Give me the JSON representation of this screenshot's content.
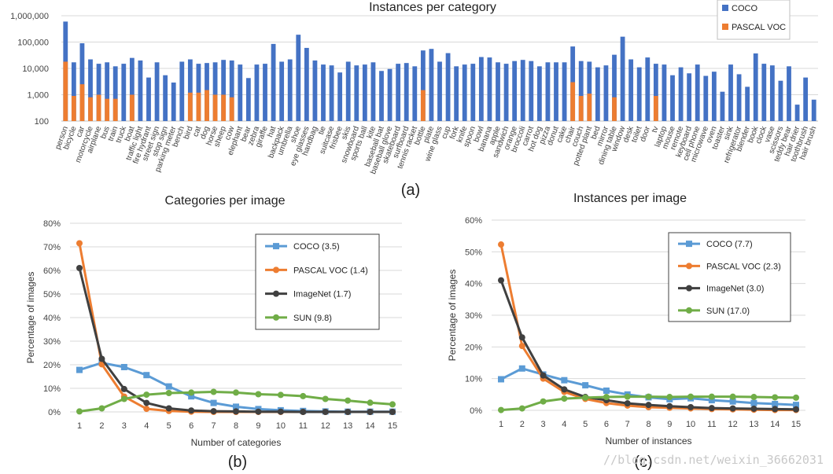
{
  "colors": {
    "coco": "#4472C4",
    "pascal": "#ED7D31",
    "coco_line": "#5B9BD5",
    "imagenet": "#404040",
    "sun": "#70AD47",
    "grid": "#D9D9D9"
  },
  "watermark": "//blog.csdn.net/weixin_36662031",
  "chart_data": [
    {
      "type": "bar",
      "id": "a",
      "panel_label": "(a)",
      "title": "Instances per category",
      "xlabel": "",
      "ylabel": "",
      "yscale": "log",
      "ylim": [
        100,
        1000000
      ],
      "yticks": [
        100,
        1000,
        10000,
        100000,
        1000000
      ],
      "ytick_labels": [
        "100",
        "1,000",
        "10,000",
        "100,000",
        "1,000,000"
      ],
      "grid": true,
      "legend": {
        "placement": "top-right",
        "entries": [
          "COCO",
          "PASCAL VOC"
        ]
      },
      "categories": [
        "person",
        "bicycle",
        "car",
        "motorcycle",
        "airplane",
        "bus",
        "train",
        "truck",
        "boat",
        "traffic light",
        "fire hydrant",
        "street sign",
        "stop sign",
        "parking meter",
        "bench",
        "bird",
        "cat",
        "dog",
        "horse",
        "sheep",
        "cow",
        "elephant",
        "bear",
        "zebra",
        "giraffe",
        "hat",
        "backpack",
        "umbrella",
        "shoe",
        "eye glasses",
        "handbag",
        "tie",
        "suitcase",
        "frisbee",
        "skis",
        "snowboard",
        "sports ball",
        "kite",
        "baseball bat",
        "baseball glove",
        "skateboard",
        "surfboard",
        "tennis racket",
        "bottle",
        "plate",
        "wine glass",
        "cup",
        "fork",
        "knife",
        "spoon",
        "bowl",
        "banana",
        "apple",
        "sandwich",
        "orange",
        "broccoli",
        "carrot",
        "hot dog",
        "pizza",
        "donut",
        "cake",
        "chair",
        "couch",
        "potted plant",
        "bed",
        "mirror",
        "dining table",
        "window",
        "desk",
        "toilet",
        "door",
        "tv",
        "laptop",
        "mouse",
        "remote",
        "keyboard",
        "cell phone",
        "microwave",
        "oven",
        "toaster",
        "sink",
        "refrigerator",
        "blender",
        "book",
        "clock",
        "vase",
        "scissors",
        "teddy bear",
        "hair drier",
        "toothbrush",
        "hair brush"
      ],
      "series": [
        {
          "name": "COCO",
          "values": [
            600000,
            17000,
            90000,
            22000,
            15000,
            17000,
            12000,
            15000,
            25000,
            20000,
            4500,
            17000,
            5500,
            2900,
            18000,
            22000,
            15000,
            16000,
            17000,
            21000,
            20000,
            14000,
            4300,
            14000,
            15000,
            85000,
            18000,
            22000,
            190000,
            60000,
            20000,
            14000,
            13000,
            7000,
            18000,
            13000,
            14000,
            17000,
            8000,
            9500,
            15000,
            16000,
            12000,
            48000,
            55000,
            18000,
            38000,
            12000,
            14000,
            15000,
            27000,
            26000,
            17000,
            15000,
            19000,
            21000,
            19000,
            12000,
            17000,
            17000,
            17000,
            68000,
            19000,
            18000,
            11000,
            13000,
            33000,
            160000,
            22000,
            11000,
            26000,
            15000,
            14000,
            5500,
            11000,
            6500,
            14000,
            5200,
            7500,
            1300,
            14000,
            6000,
            2000,
            37000,
            15000,
            13000,
            3400,
            12000,
            420,
            4500,
            650
          ]
        },
        {
          "name": "PASCAL VOC",
          "values": [
            18000,
            900,
            2500,
            800,
            1000,
            700,
            700,
            null,
            1000,
            null,
            null,
            null,
            null,
            null,
            null,
            1200,
            1200,
            1500,
            1000,
            1000,
            800,
            null,
            null,
            null,
            null,
            null,
            null,
            null,
            null,
            null,
            null,
            null,
            null,
            null,
            null,
            null,
            null,
            null,
            null,
            null,
            null,
            null,
            null,
            1500,
            null,
            null,
            null,
            null,
            null,
            null,
            null,
            null,
            null,
            null,
            null,
            null,
            null,
            null,
            null,
            null,
            null,
            3000,
            900,
            1100,
            null,
            null,
            800,
            null,
            null,
            null,
            null,
            900,
            null,
            null,
            null,
            null,
            null,
            null,
            null,
            null,
            null,
            null,
            null,
            null,
            null,
            null,
            null,
            null,
            null,
            null,
            null
          ]
        }
      ]
    },
    {
      "type": "line",
      "id": "b",
      "panel_label": "(b)",
      "title": "Categories per image",
      "xlabel": "Number of categories",
      "ylabel": "Percentage of images",
      "x": [
        1,
        2,
        3,
        4,
        5,
        6,
        7,
        8,
        9,
        10,
        11,
        12,
        13,
        14,
        15
      ],
      "ylim": [
        0,
        80
      ],
      "yticks": [
        0,
        10,
        20,
        30,
        40,
        50,
        60,
        70,
        80
      ],
      "ytick_suffix": "%",
      "grid": true,
      "legend": {
        "placement": "top-right"
      },
      "series": [
        {
          "name": "COCO (3.5)",
          "color_key": "coco_line",
          "marker": "square",
          "values": [
            17.8,
            20.8,
            19.0,
            15.6,
            10.8,
            6.6,
            3.8,
            2.2,
            1.2,
            0.7,
            0.4,
            0.2,
            0.1,
            0.1,
            0.1
          ]
        },
        {
          "name": "PASCAL VOC (1.4)",
          "color_key": "pascal",
          "marker": "circle",
          "values": [
            71.5,
            20.2,
            6.5,
            1.3,
            0.4,
            0.1,
            0,
            0,
            0,
            0,
            0,
            0,
            0,
            0,
            0
          ]
        },
        {
          "name": "ImageNet (1.7)",
          "color_key": "imagenet",
          "marker": "circle",
          "values": [
            61.0,
            22.5,
            9.7,
            3.8,
            1.5,
            0.6,
            0.3,
            0.2,
            0.1,
            0.1,
            0,
            0,
            0,
            0,
            0
          ]
        },
        {
          "name": "SUN (9.8)",
          "color_key": "sun",
          "marker": "circle",
          "values": [
            0.2,
            1.5,
            5.5,
            7.3,
            8.0,
            8.2,
            8.5,
            8.2,
            7.5,
            7.2,
            6.7,
            5.5,
            4.8,
            3.9,
            3.2
          ]
        }
      ]
    },
    {
      "type": "line",
      "id": "c",
      "panel_label": "(c)",
      "title": "Instances per image",
      "xlabel": "Number of instances",
      "ylabel": "Percentage of images",
      "x": [
        1,
        2,
        3,
        4,
        5,
        6,
        7,
        8,
        9,
        10,
        11,
        12,
        13,
        14,
        15
      ],
      "ylim": [
        0,
        60
      ],
      "yticks": [
        0,
        10,
        20,
        30,
        40,
        50,
        60
      ],
      "ytick_suffix": "%",
      "grid": true,
      "legend": {
        "placement": "top-right"
      },
      "series": [
        {
          "name": "COCO (7.7)",
          "color_key": "coco_line",
          "marker": "square",
          "values": [
            9.8,
            13.2,
            11.3,
            9.5,
            7.9,
            6.2,
            5.0,
            4.1,
            3.5,
            3.8,
            3.2,
            2.8,
            2.3,
            2.0,
            1.7
          ]
        },
        {
          "name": "PASCAL VOC (2.3)",
          "color_key": "pascal",
          "marker": "circle",
          "values": [
            52.3,
            20.3,
            10.0,
            5.8,
            3.6,
            2.3,
            1.5,
            1.0,
            0.8,
            0.6,
            0.4,
            0.3,
            0.2,
            0.1,
            0.1
          ]
        },
        {
          "name": "ImageNet (3.0)",
          "color_key": "imagenet",
          "marker": "circle",
          "values": [
            41.0,
            23.0,
            11.0,
            6.6,
            4.2,
            3.2,
            2.2,
            1.7,
            1.3,
            1.0,
            0.7,
            0.6,
            0.5,
            0.4,
            0.3
          ]
        },
        {
          "name": "SUN (17.0)",
          "color_key": "sun",
          "marker": "circle",
          "values": [
            0.1,
            0.6,
            2.8,
            3.7,
            4.0,
            4.2,
            4.3,
            4.3,
            4.2,
            4.3,
            4.3,
            4.3,
            4.2,
            4.1,
            4.0
          ]
        }
      ]
    }
  ]
}
